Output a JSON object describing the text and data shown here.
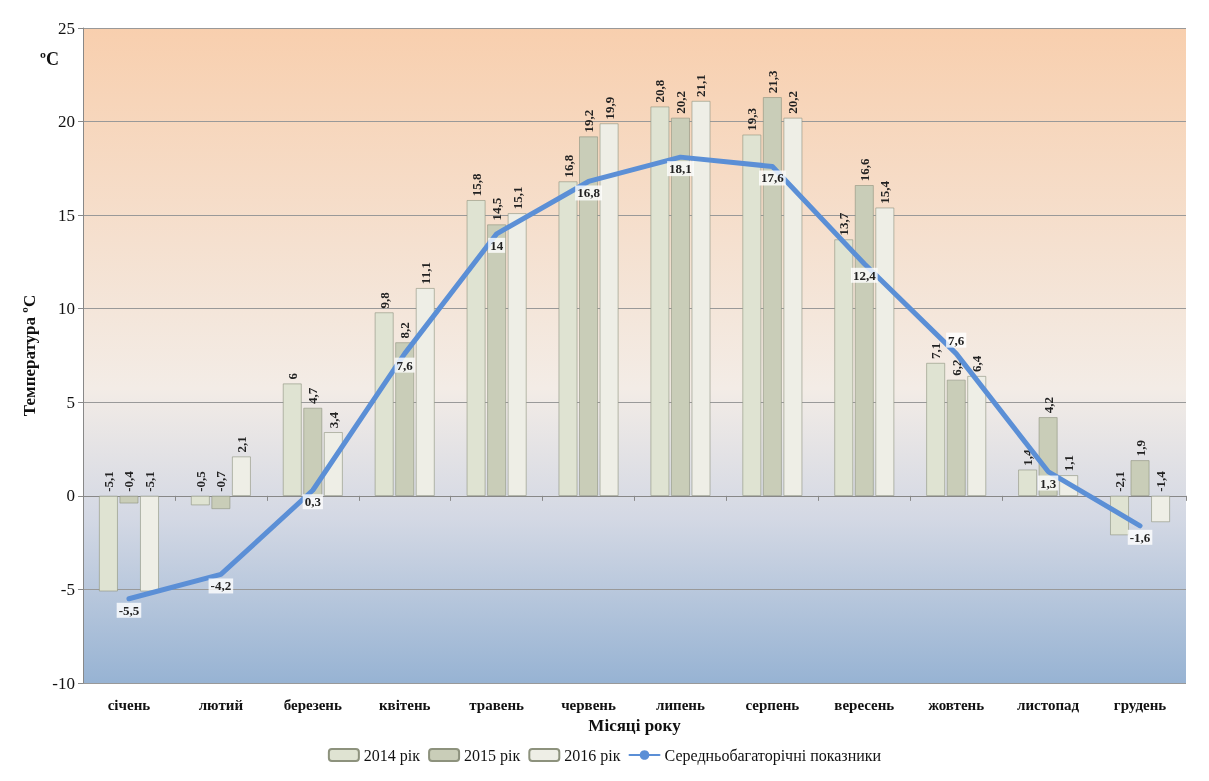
{
  "chart_data": {
    "type": "bar",
    "xlabel": "Місяці року",
    "ylabel": "Температура ºC",
    "annotations": [
      "ºC"
    ],
    "categories": [
      "січень",
      "лютий",
      "березень",
      "квітень",
      "травень",
      "червень",
      "липень",
      "серпень",
      "вересень",
      "жовтень",
      "листопад",
      "грудень"
    ],
    "series": [
      {
        "name": "2014 рік",
        "color": "#dfe3d2",
        "values": [
          -5.1,
          -0.5,
          6,
          9.8,
          15.8,
          16.8,
          20.8,
          19.3,
          13.7,
          7.1,
          1.4,
          -2.1
        ],
        "value_labels": [
          "-5,1",
          "-0,5",
          "6",
          "9,8",
          "15,8",
          "16,8",
          "20,8",
          "19,3",
          "13,7",
          "7,1",
          "1,4",
          "-2,1"
        ]
      },
      {
        "name": "2015 рік",
        "color": "#c9cdb8",
        "values": [
          -0.4,
          -0.7,
          4.7,
          8.2,
          14.5,
          19.2,
          20.2,
          21.3,
          16.6,
          6.2,
          4.2,
          1.9
        ],
        "value_labels": [
          "-0,4",
          "-0,7",
          "4,7",
          "8,2",
          "14,5",
          "19,2",
          "20,2",
          "21,3",
          "16,6",
          "6,2",
          "4,2",
          "1,9"
        ]
      },
      {
        "name": "2016 рік",
        "color": "#eeeee6",
        "values": [
          -5.1,
          2.1,
          3.4,
          11.1,
          15.1,
          19.9,
          21.1,
          20.2,
          15.4,
          6.4,
          1.1,
          -1.4
        ],
        "value_labels": [
          "-5,1",
          "2,1",
          "3,4",
          "11,1",
          "15,1",
          "19,9",
          "21,1",
          "20,2",
          "15,4",
          "6,4",
          "1,1",
          "-1,4"
        ]
      },
      {
        "name": "Середньобагаторічні показники",
        "type": "line",
        "color": "#5b8fd6",
        "values": [
          -5.5,
          -4.2,
          0.3,
          7.6,
          14,
          16.8,
          18.1,
          17.6,
          12.4,
          7.6,
          1.3,
          -1.6
        ],
        "value_labels": [
          "-5,5",
          "-4,2",
          "0,3",
          "7,6",
          "14",
          "16,8",
          "18,1",
          "17,6",
          "12,4",
          "7,6",
          "1,3",
          "-1,6"
        ]
      }
    ],
    "ylim": [
      -10,
      25
    ],
    "yticks": [
      -10,
      -5,
      0,
      5,
      10,
      15,
      20,
      25
    ],
    "grid": "y",
    "legend": "bottom",
    "marker": "none"
  }
}
